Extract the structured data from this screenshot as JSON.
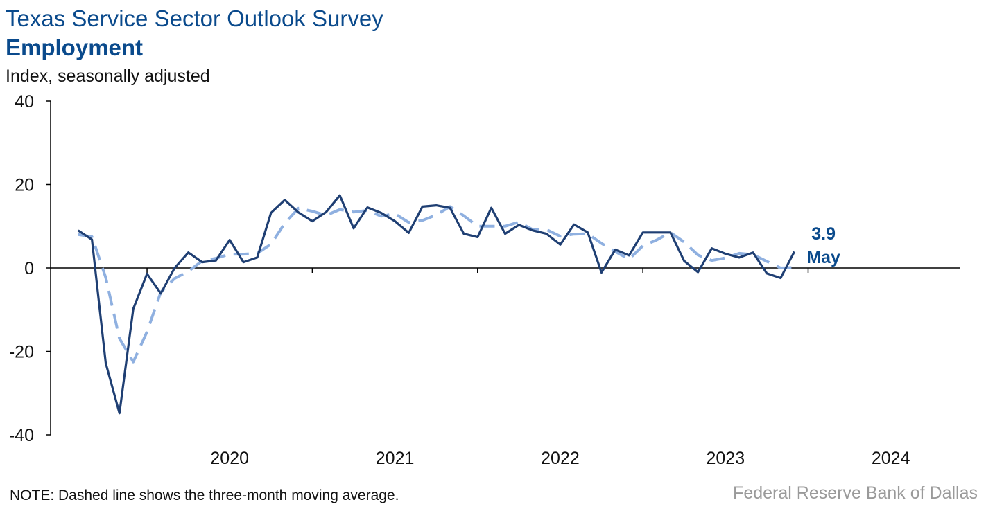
{
  "header": {
    "title": "Texas Service Sector Outlook Survey",
    "subtitle": "Employment",
    "ylabel": "Index, seasonally adjusted"
  },
  "footer": {
    "note": "NOTE: Dashed line shows the three-month moving average.",
    "source": "Federal Reserve Bank of Dallas"
  },
  "colors": {
    "title": "#0a4a8c",
    "actual": "#1f3f73",
    "moving_average": "#8fb0e0",
    "axis": "#000000",
    "source": "#9a9a9a"
  },
  "chart_data": {
    "type": "line",
    "x_start": "2019-08",
    "x_end": "2024-05",
    "xlim": [
      "2019-06",
      "2024-12"
    ],
    "ylim": [
      -40,
      40
    ],
    "yticks": [
      40,
      20,
      0,
      -20,
      -40
    ],
    "ytick_labels": [
      "40",
      "20",
      "0",
      "-20",
      "-40"
    ],
    "xtick_labels": [
      "2020",
      "2021",
      "2022",
      "2023",
      "2024"
    ],
    "grid": false,
    "series": [
      {
        "style": "solid",
        "values": [
          9.0,
          6.8,
          -22.8,
          -34.8,
          -9.8,
          -1.4,
          -6.1,
          0.0,
          3.7,
          1.4,
          1.8,
          6.7,
          1.4,
          2.5,
          13.2,
          16.3,
          13.3,
          11.2,
          13.4,
          17.4,
          9.5,
          14.5,
          13.2,
          11.2,
          8.4,
          14.7,
          15.0,
          14.4,
          8.2,
          7.4,
          14.4,
          8.2,
          10.3,
          9.0,
          8.2,
          5.6,
          10.4,
          8.5,
          -1.1,
          4.4,
          3.0,
          8.5,
          8.5,
          8.5,
          1.7,
          -1.0,
          4.7,
          3.4,
          2.5,
          3.7,
          -1.3,
          -2.4,
          3.9
        ]
      },
      {
        "style": "dashed",
        "values": [
          8.0,
          7.5,
          -2.3,
          -16.9,
          -22.5,
          -15.3,
          -5.8,
          -2.5,
          -0.8,
          1.7,
          2.3,
          3.3,
          3.3,
          3.5,
          5.7,
          10.7,
          14.3,
          13.6,
          12.6,
          14.0,
          13.4,
          13.8,
          12.4,
          13.0,
          10.9,
          11.4,
          12.7,
          14.7,
          12.5,
          10.0,
          10.0,
          10.0,
          11.0,
          9.2,
          9.2,
          7.6,
          8.1,
          8.2,
          5.9,
          3.9,
          2.1,
          5.3,
          6.7,
          8.5,
          6.2,
          3.1,
          1.8,
          2.4,
          3.5,
          3.2,
          1.6,
          0.0,
          0.1
        ]
      }
    ],
    "annotation": {
      "value_label": "3.9",
      "month_label": "May"
    }
  }
}
